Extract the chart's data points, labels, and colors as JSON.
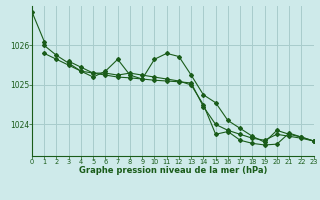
{
  "title": "Graphe pression niveau de la mer (hPa)",
  "bg_color": "#ceeaea",
  "grid_color": "#a8cccc",
  "line_color": "#1a5c1a",
  "xlim": [
    0,
    23
  ],
  "ylim": [
    1023.2,
    1027.0
  ],
  "yticks": [
    1024,
    1025,
    1026
  ],
  "xticks": [
    0,
    1,
    2,
    3,
    4,
    5,
    6,
    7,
    8,
    9,
    10,
    11,
    12,
    13,
    14,
    15,
    16,
    17,
    18,
    19,
    20,
    21,
    22,
    23
  ],
  "series": [
    [
      1026.85,
      1026.1,
      null,
      null,
      null,
      null,
      null,
      null,
      null,
      null,
      null,
      null,
      null,
      null,
      null,
      null,
      null,
      null,
      null,
      null,
      null,
      null,
      null,
      null
    ],
    [
      null,
      1026.0,
      1025.75,
      1025.55,
      1025.35,
      1025.3,
      1025.25,
      1025.2,
      1025.18,
      1025.15,
      1025.12,
      1025.1,
      1025.08,
      1025.05,
      1024.45,
      1024.0,
      1023.85,
      1023.75,
      1023.65,
      1023.6,
      1023.75,
      1023.7,
      1023.65,
      1023.58
    ],
    [
      null,
      1025.8,
      1025.65,
      1025.5,
      1025.35,
      1025.2,
      1025.35,
      1025.65,
      1025.25,
      1025.15,
      1025.65,
      1025.8,
      1025.72,
      1025.25,
      1024.75,
      1024.55,
      1024.1,
      1023.9,
      1023.7,
      1023.55,
      1023.85,
      1023.75,
      1023.68,
      1023.58
    ],
    [
      null,
      null,
      null,
      1025.6,
      1025.45,
      1025.3,
      1025.3,
      1025.25,
      1025.3,
      1025.25,
      1025.2,
      1025.15,
      1025.1,
      1025.0,
      1024.5,
      1023.75,
      1023.82,
      1023.6,
      1023.52,
      1023.48,
      1023.5,
      1023.78,
      1023.68,
      1023.58
    ]
  ]
}
